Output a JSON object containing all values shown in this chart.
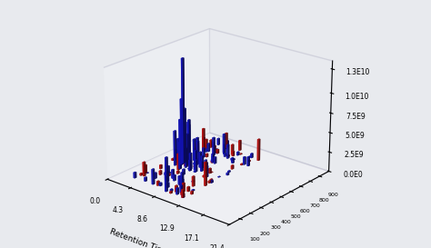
{
  "title": "",
  "xlabel": "Retention Time",
  "z_tick_labels": [
    "0.0E0",
    "2.5E9",
    "5.0E9",
    "7.5E9",
    "1.0E10",
    "1.3E10"
  ],
  "z_ticks": [
    0.0,
    2500000000.0,
    5000000000.0,
    7500000000.0,
    10000000000.0,
    13000000000.0
  ],
  "x_ticks": [
    0.0,
    4.3,
    8.6,
    12.9,
    17.1,
    21.4
  ],
  "xlim": [
    0.0,
    21.4
  ],
  "ylim": [
    0,
    1000
  ],
  "zlim": [
    0.0,
    14000000000.0
  ],
  "background_color": "#e8eaee",
  "pane_color": "#f4f4f8",
  "elev": 22,
  "azim": -50,
  "seed": 7
}
